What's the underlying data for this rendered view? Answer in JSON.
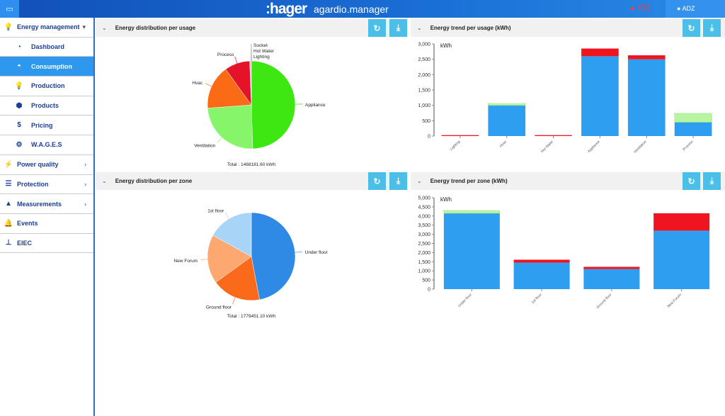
{
  "header": {
    "home_icon": "laptop-icon",
    "logo": ":hager",
    "app_name": "agardio.manager",
    "alarm_count": "6(5)",
    "alarm_icon": "warning-triangle-icon",
    "user": "ADZ",
    "user_icon": "user-icon"
  },
  "sidebar": {
    "items": [
      {
        "label": "Energy management",
        "icon": "bulb-icon",
        "chev": "▾",
        "sub": false
      },
      {
        "label": "Dashboard",
        "icon": "pie-icon",
        "sub": true
      },
      {
        "label": "Consumption",
        "icon": "gauge-icon",
        "sub": true,
        "active": true
      },
      {
        "label": "Production",
        "icon": "bulb-icon",
        "sub": true
      },
      {
        "label": "Products",
        "icon": "box-icon",
        "sub": true
      },
      {
        "label": "Pricing",
        "icon": "dollar-icon",
        "sub": true
      },
      {
        "label": "W.A.G.E.S",
        "icon": "gears-icon",
        "sub": true
      },
      {
        "label": "Power quality",
        "icon": "plug-icon",
        "chev": "›"
      },
      {
        "label": "Protection",
        "icon": "sliders-icon",
        "chev": "›"
      },
      {
        "label": "Measurements",
        "icon": "area-chart-icon",
        "chev": "›"
      },
      {
        "label": "Events",
        "icon": "bell-icon"
      },
      {
        "label": "EIEC",
        "icon": "sitemap-icon"
      }
    ]
  },
  "panels": {
    "usage_pie": {
      "title": "Energy distribution per usage"
    },
    "usage_bar": {
      "title": "Energy trend per usage (kWh)"
    },
    "zone_pie": {
      "title": "Energy distribution per zone"
    },
    "zone_bar": {
      "title": "Energy trend per zone (kWh)"
    }
  },
  "colors": {
    "blue": "#2e9ef0",
    "red": "#f0141e",
    "green": "#b8f5a0",
    "button": "#4bbfe8"
  },
  "chart_data": [
    {
      "type": "pie",
      "total": "Total : 1468181.60 kWh",
      "slices": [
        {
          "label": "Appliance",
          "value": 49.5,
          "color": "#3de812"
        },
        {
          "label": "Ventilation",
          "value": 24.3,
          "color": "#86f56a"
        },
        {
          "label": "Hvac",
          "value": 16.3,
          "color": "#fb6a14"
        },
        {
          "label": "Process",
          "value": 9.3,
          "color": "#e4132a"
        },
        {
          "label": "Lighting",
          "value": 0.2,
          "color": "#4a7ad0"
        },
        {
          "label": "Hot Water",
          "value": 0.2,
          "color": "#999999"
        },
        {
          "label": "Socket",
          "value": 0.2,
          "color": "#666666"
        }
      ]
    },
    {
      "type": "bar",
      "stacked": true,
      "ylabel": "kWh",
      "ylim": [
        0,
        3000
      ],
      "ticks": [
        "0",
        "500",
        "1,000",
        "1,500",
        "2,000",
        "2,500",
        "3,000"
      ],
      "categories": [
        "Lighting",
        "Hvac",
        "Hot Water",
        "Appliance",
        "Ventilation",
        "Process"
      ],
      "series": [
        {
          "color": "#2e9ef0",
          "values": [
            0,
            1000,
            0,
            2600,
            2500,
            450
          ]
        },
        {
          "color": "#f0141e",
          "values": [
            30,
            0,
            30,
            250,
            130,
            0
          ]
        },
        {
          "color": "#b8f5a0",
          "values": [
            0,
            60,
            0,
            0,
            0,
            290
          ]
        }
      ]
    },
    {
      "type": "pie",
      "total": "Total : 1779451.10 kWh",
      "slices": [
        {
          "label": "Under floor",
          "value": 47,
          "color": "#2f8ae6"
        },
        {
          "label": "Ground floor",
          "value": 18,
          "color": "#fb6a1a"
        },
        {
          "label": "New Forum",
          "value": 18,
          "color": "#fda870"
        },
        {
          "label": "1st floor",
          "value": 17,
          "color": "#a8d4f8"
        }
      ]
    },
    {
      "type": "bar",
      "stacked": true,
      "ylabel": "kWh",
      "ylim": [
        0,
        5000
      ],
      "ticks": [
        "0",
        "500",
        "1,000",
        "1,500",
        "2,000",
        "2,500",
        "3,000",
        "3,500",
        "4,000",
        "4,500",
        "5,000"
      ],
      "categories": [
        "Under floor",
        "1st floor",
        "Ground floor",
        "New Forum"
      ],
      "series": [
        {
          "color": "#2e9ef0",
          "values": [
            4150,
            1450,
            1100,
            3200
          ]
        },
        {
          "color": "#f0141e",
          "values": [
            0,
            160,
            120,
            950
          ]
        },
        {
          "color": "#b8f5a0",
          "values": [
            150,
            0,
            0,
            0
          ]
        }
      ]
    }
  ]
}
